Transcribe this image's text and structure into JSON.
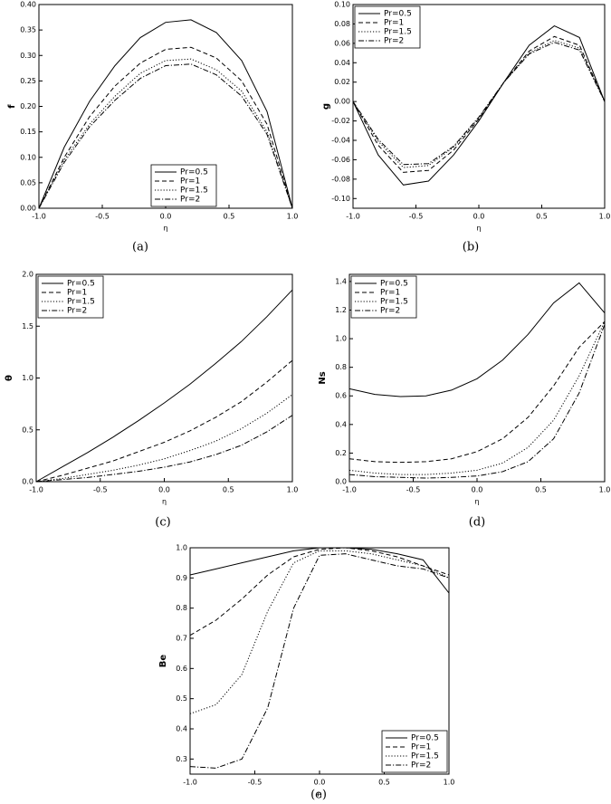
{
  "chart_data": [
    {
      "type": "line",
      "caption": "(a)",
      "xlabel": "η",
      "ylabel": "f",
      "legend": "lower center",
      "xlim": [
        -1,
        1
      ],
      "xticks": [
        {
          "value": -1,
          "label": "-1.0"
        },
        -0.5,
        {
          "value": 0,
          "label": "0.0"
        },
        0.5,
        {
          "value": 1,
          "label": "1.0"
        }
      ],
      "ylim": [
        0,
        0.4
      ],
      "yticks": [
        {
          "value": 0,
          "label": "0.00"
        },
        0.05,
        {
          "value": 0.1,
          "label": "0.10"
        },
        0.15,
        {
          "value": 0.2,
          "label": "0.20"
        },
        0.25,
        {
          "value": 0.3,
          "label": "0.30"
        },
        0.35,
        {
          "value": 0.4,
          "label": "0.40"
        }
      ],
      "x": [
        -1,
        -0.8,
        -0.6,
        -0.4,
        -0.2,
        0,
        0.2,
        0.4,
        0.6,
        0.8,
        1
      ],
      "series": [
        {
          "name": "Pr=0.5",
          "color": "#000000",
          "dash": "solid",
          "values": [
            0,
            0.12,
            0.21,
            0.28,
            0.335,
            0.365,
            0.37,
            0.345,
            0.29,
            0.19,
            0
          ]
        },
        {
          "name": "Pr=1",
          "color": "#000000",
          "dash": "dashed",
          "values": [
            0,
            0.1,
            0.18,
            0.24,
            0.285,
            0.312,
            0.316,
            0.295,
            0.25,
            0.165,
            0
          ]
        },
        {
          "name": "Pr=1.5",
          "color": "#000000",
          "dash": "dotted",
          "values": [
            0,
            0.095,
            0.165,
            0.22,
            0.265,
            0.29,
            0.293,
            0.272,
            0.23,
            0.15,
            0
          ]
        },
        {
          "name": "Pr=2",
          "color": "#000000",
          "dash": "dashdot",
          "values": [
            0,
            0.09,
            0.16,
            0.212,
            0.255,
            0.28,
            0.283,
            0.262,
            0.22,
            0.145,
            0
          ]
        }
      ]
    },
    {
      "type": "line",
      "caption": "(b)",
      "xlabel": "η",
      "ylabel": "g",
      "legend": "upper left",
      "xlim": [
        -1,
        1
      ],
      "xticks": [
        {
          "value": -1,
          "label": "-1.0"
        },
        -0.5,
        {
          "value": 0,
          "label": "0.0"
        },
        0.5,
        {
          "value": 1,
          "label": "1.0"
        }
      ],
      "ylim": [
        -0.11,
        0.1
      ],
      "yticks": [
        {
          "value": -0.1,
          "label": "-0.10"
        },
        -0.08,
        -0.06,
        -0.04,
        -0.02,
        {
          "value": 0,
          "label": "0.00"
        },
        0.02,
        0.04,
        0.06,
        0.08,
        {
          "value": 0.1,
          "label": "0.10"
        }
      ],
      "x": [
        -1,
        -0.8,
        -0.6,
        -0.4,
        -0.2,
        0,
        0.2,
        0.4,
        0.6,
        0.8,
        1
      ],
      "series": [
        {
          "name": "Pr=0.5",
          "color": "#000000",
          "dash": "solid",
          "values": [
            0,
            -0.055,
            -0.086,
            -0.082,
            -0.055,
            -0.02,
            0.02,
            0.058,
            0.078,
            0.066,
            0
          ]
        },
        {
          "name": "Pr=1",
          "color": "#000000",
          "dash": "dashed",
          "values": [
            0,
            -0.045,
            -0.073,
            -0.071,
            -0.05,
            -0.018,
            0.02,
            0.052,
            0.067,
            0.058,
            0
          ]
        },
        {
          "name": "Pr=1.5",
          "color": "#000000",
          "dash": "dotted",
          "values": [
            0,
            -0.041,
            -0.068,
            -0.066,
            -0.047,
            -0.017,
            0.02,
            0.05,
            0.063,
            0.055,
            0
          ]
        },
        {
          "name": "Pr=2",
          "color": "#000000",
          "dash": "dashdot",
          "values": [
            0,
            -0.039,
            -0.065,
            -0.064,
            -0.046,
            -0.016,
            0.02,
            0.049,
            0.061,
            0.053,
            0
          ]
        }
      ]
    },
    {
      "type": "line",
      "caption": "(c)",
      "xlabel": "η",
      "ylabel": "θ",
      "legend": "upper left",
      "xlim": [
        -1,
        1
      ],
      "xticks": [
        {
          "value": -1,
          "label": "-1.0"
        },
        -0.5,
        {
          "value": 0,
          "label": "0.0"
        },
        0.5,
        {
          "value": 1,
          "label": "1.0"
        }
      ],
      "ylim": [
        0,
        2
      ],
      "yticks": [
        {
          "value": 0,
          "label": "0.0"
        },
        0.5,
        {
          "value": 1,
          "label": "1.0"
        },
        1.5,
        {
          "value": 2,
          "label": "2.0"
        }
      ],
      "x": [
        -1,
        -0.8,
        -0.6,
        -0.4,
        -0.2,
        0,
        0.2,
        0.4,
        0.6,
        0.8,
        1
      ],
      "series": [
        {
          "name": "Pr=0.5",
          "color": "#000000",
          "dash": "solid",
          "values": [
            0,
            0.14,
            0.28,
            0.43,
            0.59,
            0.76,
            0.94,
            1.14,
            1.35,
            1.59,
            1.85
          ]
        },
        {
          "name": "Pr=1",
          "color": "#000000",
          "dash": "dashed",
          "values": [
            0,
            0.06,
            0.13,
            0.2,
            0.29,
            0.38,
            0.49,
            0.62,
            0.77,
            0.96,
            1.17
          ]
        },
        {
          "name": "Pr=1.5",
          "color": "#000000",
          "dash": "dotted",
          "values": [
            0,
            0.03,
            0.07,
            0.11,
            0.16,
            0.22,
            0.3,
            0.39,
            0.51,
            0.66,
            0.84
          ]
        },
        {
          "name": "Pr=2",
          "color": "#000000",
          "dash": "dashdot",
          "values": [
            0,
            0.02,
            0.04,
            0.07,
            0.1,
            0.14,
            0.19,
            0.26,
            0.35,
            0.48,
            0.64
          ]
        }
      ]
    },
    {
      "type": "line",
      "caption": "(d)",
      "xlabel": "η",
      "ylabel": "Ns",
      "legend": "upper left",
      "xlim": [
        -1,
        1
      ],
      "xticks": [
        {
          "value": -1,
          "label": "-1.0"
        },
        -0.5,
        {
          "value": 0,
          "label": "0.0"
        },
        0.5,
        {
          "value": 1,
          "label": "1.0"
        }
      ],
      "ylim": [
        0,
        1.45
      ],
      "yticks": [
        {
          "value": 0,
          "label": "0.0"
        },
        0.2,
        0.4,
        0.6,
        0.8,
        {
          "value": 1,
          "label": "1.0"
        },
        1.2,
        1.4
      ],
      "x": [
        -1,
        -0.8,
        -0.6,
        -0.4,
        -0.2,
        0,
        0.2,
        0.4,
        0.6,
        0.8,
        1
      ],
      "series": [
        {
          "name": "Pr=0.5",
          "color": "#000000",
          "dash": "solid",
          "values": [
            0.65,
            0.61,
            0.595,
            0.6,
            0.64,
            0.72,
            0.85,
            1.03,
            1.25,
            1.39,
            1.18
          ]
        },
        {
          "name": "Pr=1",
          "color": "#000000",
          "dash": "dashed",
          "values": [
            0.16,
            0.14,
            0.135,
            0.14,
            0.16,
            0.21,
            0.3,
            0.45,
            0.67,
            0.94,
            1.12
          ]
        },
        {
          "name": "Pr=1.5",
          "color": "#000000",
          "dash": "dotted",
          "values": [
            0.08,
            0.06,
            0.05,
            0.05,
            0.06,
            0.08,
            0.13,
            0.24,
            0.43,
            0.74,
            1.12
          ]
        },
        {
          "name": "Pr=2",
          "color": "#000000",
          "dash": "dashdot",
          "values": [
            0.05,
            0.035,
            0.03,
            0.025,
            0.03,
            0.04,
            0.07,
            0.14,
            0.3,
            0.62,
            1.1
          ]
        }
      ]
    },
    {
      "type": "line",
      "caption": "(e)",
      "xlabel": "η",
      "ylabel": "Be",
      "legend": "lower right",
      "xlim": [
        -1,
        1
      ],
      "xticks": [
        {
          "value": -1,
          "label": "-1.0"
        },
        -0.5,
        {
          "value": 0,
          "label": "0.0"
        },
        0.5,
        {
          "value": 1,
          "label": "1.0"
        }
      ],
      "ylim": [
        0.25,
        1
      ],
      "yticks": [
        0.3,
        0.4,
        0.5,
        0.6,
        0.7,
        0.8,
        0.9,
        {
          "value": 1,
          "label": "1.0"
        }
      ],
      "x": [
        -1,
        -0.8,
        -0.6,
        -0.4,
        -0.2,
        0,
        0.2,
        0.4,
        0.6,
        0.8,
        1
      ],
      "series": [
        {
          "name": "Pr=0.5",
          "color": "#000000",
          "dash": "solid",
          "values": [
            0.91,
            0.93,
            0.95,
            0.97,
            0.99,
            1,
            1,
            0.995,
            0.98,
            0.96,
            0.85
          ]
        },
        {
          "name": "Pr=1",
          "color": "#000000",
          "dash": "dashed",
          "values": [
            0.71,
            0.76,
            0.83,
            0.91,
            0.97,
            0.995,
            1,
            0.99,
            0.97,
            0.94,
            0.91
          ]
        },
        {
          "name": "Pr=1.5",
          "color": "#000000",
          "dash": "dotted",
          "values": [
            0.45,
            0.48,
            0.58,
            0.79,
            0.95,
            0.99,
            0.99,
            0.98,
            0.96,
            0.94,
            0.9
          ]
        },
        {
          "name": "Pr=2",
          "color": "#000000",
          "dash": "dashdot",
          "values": [
            0.275,
            0.27,
            0.3,
            0.47,
            0.8,
            0.975,
            0.98,
            0.96,
            0.94,
            0.93,
            0.9
          ]
        }
      ]
    }
  ]
}
